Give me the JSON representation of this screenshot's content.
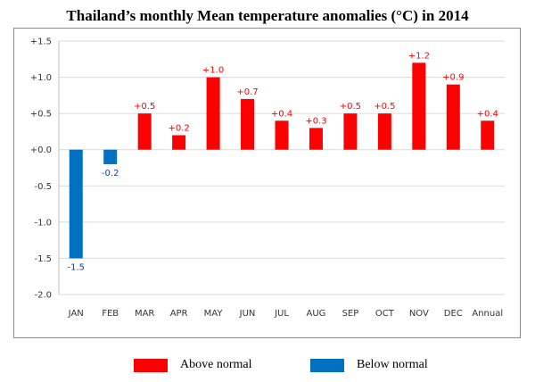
{
  "chart_data": {
    "type": "bar",
    "title": "Thailand’s monthly Mean temperature anomalies (°C) in 2014",
    "categories": [
      "JAN",
      "FEB",
      "MAR",
      "APR",
      "MAY",
      "JUN",
      "JUL",
      "AUG",
      "SEP",
      "OCT",
      "NOV",
      "DEC",
      "Annual"
    ],
    "values": [
      -1.5,
      -0.2,
      0.5,
      0.2,
      1.0,
      0.7,
      0.4,
      0.3,
      0.5,
      0.5,
      1.2,
      0.9,
      0.4
    ],
    "value_labels": [
      "-1.5",
      "-0.2",
      "+0.5",
      "+0.2",
      "+1.0",
      "+0.7",
      "+0.4",
      "+0.3",
      "+0.5",
      "+0.5",
      "+1.2",
      "+0.9",
      "+0.4"
    ],
    "ylim": [
      -2.0,
      1.5
    ],
    "yticks": [
      1.5,
      1.0,
      0.5,
      0.0,
      -0.5,
      -1.0,
      -1.5,
      -2.0
    ],
    "ytick_labels": [
      "+1.5",
      "+1.0",
      "+0.5",
      "+0.0",
      "-0.5",
      "-1.0",
      "-1.5",
      "-2.0"
    ],
    "xlabel": "",
    "ylabel": "",
    "grid": true,
    "legend": [
      {
        "label": "Above normal",
        "color": "#ff0000"
      },
      {
        "label": "Below normal",
        "color": "#0070c0"
      }
    ],
    "colors": {
      "positive": "#ff0000",
      "negative": "#0070c0",
      "grid": "#d9d9d9",
      "positive_label": "#ff0000",
      "negative_label": "#1f3c88"
    }
  }
}
